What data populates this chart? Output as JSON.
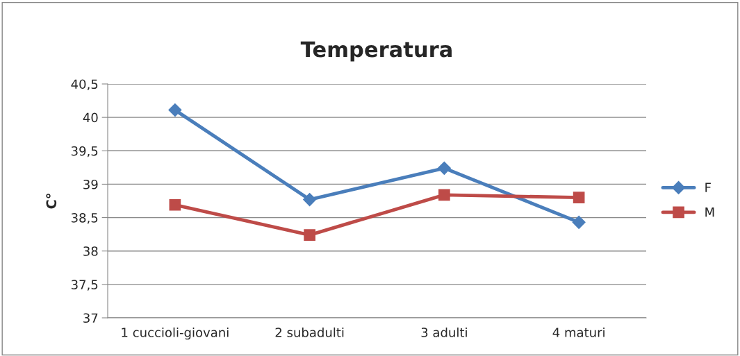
{
  "chart_data": {
    "type": "line",
    "title": "Temperatura",
    "ylabel": "C°",
    "categories": [
      "1 cuccioli-giovani",
      "2 subadulti",
      "3 adulti",
      "4 maturi"
    ],
    "series": [
      {
        "name": "F",
        "color": "#4a7ebb",
        "marker": "diamond",
        "values": [
          40.11,
          38.77,
          39.24,
          38.43
        ]
      },
      {
        "name": "M",
        "color": "#be4b48",
        "marker": "square",
        "values": [
          38.69,
          38.24,
          38.84,
          38.8
        ]
      }
    ],
    "ylim": [
      37,
      40.5
    ],
    "yticks": [
      37,
      {
        "value": 37.5,
        "label": "37,5"
      },
      38,
      {
        "value": 38.5,
        "label": "38,5"
      },
      39,
      {
        "value": 39.5,
        "label": "39,5"
      },
      40,
      {
        "value": 40.5,
        "label": "40,5"
      }
    ],
    "grid": "y",
    "legend": "right",
    "line_style": "solid"
  }
}
